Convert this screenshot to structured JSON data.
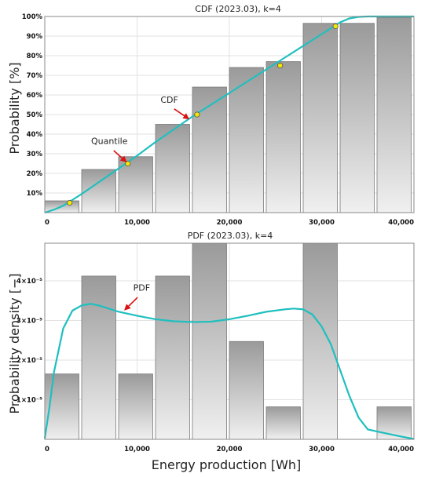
{
  "chart_data": [
    {
      "type": "bar",
      "title": "CDF (2023.03), k=4",
      "ylabel": "Probability [%]",
      "xlabel": "",
      "xlim": [
        0,
        40000
      ],
      "ylim": [
        0,
        100
      ],
      "x_ticks": [
        "0",
        "10,000",
        "20,000",
        "30,000",
        "40,000"
      ],
      "x_tick_values": [
        0,
        10000,
        20000,
        30000,
        40000
      ],
      "y_ticks": [
        "10%",
        "20%",
        "30%",
        "40%",
        "50%",
        "60%",
        "70%",
        "80%",
        "90%",
        "100%"
      ],
      "y_tick_values": [
        10,
        20,
        30,
        40,
        50,
        60,
        70,
        80,
        90,
        100
      ],
      "grid": true,
      "bars": [
        {
          "x0": 0,
          "x1": 3700,
          "value": 6
        },
        {
          "x0": 4000,
          "x1": 7700,
          "value": 22
        },
        {
          "x0": 8000,
          "x1": 11700,
          "value": 28.5
        },
        {
          "x0": 12000,
          "x1": 15700,
          "value": 45
        },
        {
          "x0": 16000,
          "x1": 19700,
          "value": 64
        },
        {
          "x0": 20000,
          "x1": 23700,
          "value": 74
        },
        {
          "x0": 24000,
          "x1": 27700,
          "value": 77
        },
        {
          "x0": 28000,
          "x1": 31700,
          "value": 96.5
        },
        {
          "x0": 32000,
          "x1": 35700,
          "value": 96.5
        },
        {
          "x0": 36000,
          "x1": 39700,
          "value": 99.5
        }
      ],
      "curve": {
        "x": [
          0,
          1000,
          2000,
          3000,
          4000,
          6000,
          8000,
          10000,
          12000,
          14000,
          16000,
          18000,
          20000,
          22000,
          24000,
          26000,
          28000,
          30000,
          31000,
          32000,
          33000,
          34000,
          35000,
          36000,
          38000,
          40000
        ],
        "y": [
          0,
          1.5,
          3.5,
          6.5,
          9.5,
          16,
          22.5,
          29,
          36,
          42.5,
          49,
          55,
          61,
          67,
          73,
          79,
          85,
          91,
          94,
          97,
          99,
          99.8,
          100,
          100,
          100,
          100
        ]
      },
      "markers": [
        {
          "x": 2700,
          "y": 5
        },
        {
          "x": 9000,
          "y": 25
        },
        {
          "x": 16500,
          "y": 50
        },
        {
          "x": 25500,
          "y": 75
        },
        {
          "x": 31500,
          "y": 95
        }
      ],
      "annotations": [
        {
          "text": "Quantile",
          "x": 7000,
          "y": 35,
          "arrow_x": 9000,
          "arrow_y": 25
        },
        {
          "text": "CDF",
          "x": 13500,
          "y": 56,
          "arrow_x": 15800,
          "arrow_y": 47
        }
      ]
    },
    {
      "type": "bar",
      "title": "PDF (2023.03), k=4",
      "ylabel": "Probability density [−]",
      "xlabel": "Energy production [Wh]",
      "xlim": [
        0,
        40000
      ],
      "ylim": [
        0,
        4.95e-05
      ],
      "x_ticks": [
        "0",
        "10,000",
        "20,000",
        "30,000",
        "40,000"
      ],
      "x_tick_values": [
        0,
        10000,
        20000,
        30000,
        40000
      ],
      "y_ticks": [
        "1×10⁻⁵",
        "2×10⁻⁵",
        "3×10⁻⁵",
        "4×10⁻⁵"
      ],
      "y_tick_values": [
        1e-05,
        2e-05,
        3e-05,
        4e-05
      ],
      "grid": true,
      "bars": [
        {
          "x0": 0,
          "x1": 3700,
          "value": 1.65e-05
        },
        {
          "x0": 4000,
          "x1": 7700,
          "value": 4.12e-05
        },
        {
          "x0": 8000,
          "x1": 11700,
          "value": 1.65e-05
        },
        {
          "x0": 12000,
          "x1": 15700,
          "value": 4.12e-05
        },
        {
          "x0": 16000,
          "x1": 19700,
          "value": 4.95e-05
        },
        {
          "x0": 20000,
          "x1": 23700,
          "value": 2.47e-05
        },
        {
          "x0": 24000,
          "x1": 27700,
          "value": 8.2e-06
        },
        {
          "x0": 28000,
          "x1": 31700,
          "value": 4.95e-05
        },
        {
          "x0": 32000,
          "x1": 35700,
          "value": 0
        },
        {
          "x0": 36000,
          "x1": 39700,
          "value": 8.2e-06
        }
      ],
      "curve": {
        "x": [
          0,
          500,
          1000,
          2000,
          3000,
          4000,
          5000,
          6000,
          8000,
          10000,
          12000,
          14000,
          16000,
          18000,
          20000,
          22000,
          24000,
          26000,
          27000,
          28000,
          29000,
          30000,
          31000,
          32000,
          33000,
          34000,
          35000,
          36000,
          38000,
          40000
        ],
        "y": [
          2e-07,
          8e-06,
          1.7e-05,
          2.8e-05,
          3.25e-05,
          3.38e-05,
          3.42e-05,
          3.37e-05,
          3.22e-05,
          3.12e-05,
          3.03e-05,
          2.98e-05,
          2.96e-05,
          2.97e-05,
          3.03e-05,
          3.12e-05,
          3.22e-05,
          3.28e-05,
          3.3e-05,
          3.28e-05,
          3.15e-05,
          2.85e-05,
          2.4e-05,
          1.75e-05,
          1.1e-05,
          5.5e-06,
          2.5e-06,
          2e-06,
          1e-06,
          1e-07
        ]
      },
      "markers": [],
      "annotations": [
        {
          "text": "PDF",
          "x": 10500,
          "y": 3.75e-05,
          "arrow_x": 8500,
          "arrow_y": 3.22e-05
        }
      ]
    }
  ],
  "colors": {
    "curve": "#1fbfbf",
    "marker_fill": "#f5e600",
    "arrow": "#dd1111",
    "bar_top": "#9a9a9a",
    "bar_bottom": "#f0f0f0",
    "grid": "#e2e2e2"
  }
}
